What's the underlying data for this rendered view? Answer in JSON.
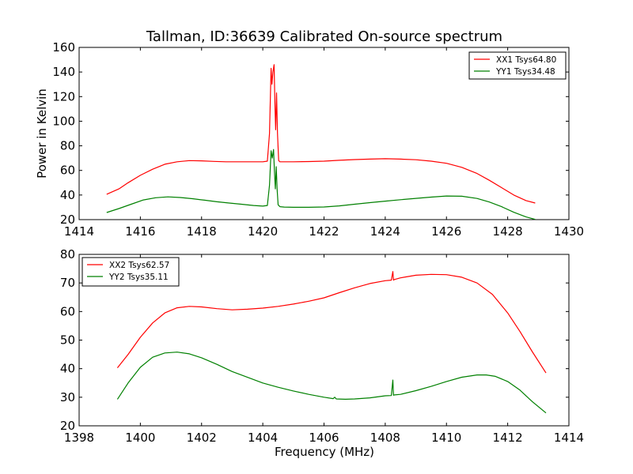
{
  "chart_data": [
    {
      "type": "line",
      "title": "Tallman, ID:36639 Calibrated On-source spectrum",
      "xlabel": "",
      "ylabel": "Power in Kelvin",
      "xlim": [
        1414,
        1430
      ],
      "ylim": [
        20,
        160
      ],
      "xticks": [
        "1414",
        "1416",
        "1418",
        "1420",
        "1422",
        "1424",
        "1426",
        "1428",
        "1430"
      ],
      "yticks": [
        "20",
        "40",
        "60",
        "80",
        "100",
        "120",
        "140",
        "160"
      ],
      "legend_position": "top-right",
      "series": [
        {
          "name": "XX1 Tsys64.80",
          "color": "#ff0000",
          "x": [
            1414.9,
            1415.3,
            1415.6,
            1416.0,
            1416.4,
            1416.8,
            1417.2,
            1417.6,
            1418.0,
            1418.4,
            1418.8,
            1419.2,
            1419.6,
            1420.0,
            1420.15,
            1420.22,
            1420.27,
            1420.3,
            1420.33,
            1420.37,
            1420.4,
            1420.42,
            1420.45,
            1420.48,
            1420.52,
            1420.56,
            1420.65,
            1421.0,
            1421.5,
            1422.0,
            1422.5,
            1423.0,
            1423.5,
            1424.0,
            1424.5,
            1425.0,
            1425.5,
            1426.0,
            1426.5,
            1427.0,
            1427.4,
            1427.8,
            1428.2,
            1428.6,
            1428.9
          ],
          "y": [
            40.6,
            45,
            50,
            56,
            61,
            65,
            67,
            68,
            67.8,
            67.3,
            67,
            67,
            67,
            67,
            67.5,
            90,
            143,
            130,
            140,
            146,
            110,
            93,
            123,
            90,
            68,
            67,
            67,
            67,
            67.2,
            67.5,
            68.2,
            68.8,
            69.2,
            69.5,
            69.2,
            68.7,
            67.5,
            65.8,
            62.5,
            57.5,
            52,
            46,
            40,
            35.5,
            33.5
          ]
        },
        {
          "name": "YY1 Tsys34.48",
          "color": "#008000",
          "x": [
            1414.9,
            1415.3,
            1415.7,
            1416.1,
            1416.5,
            1416.9,
            1417.3,
            1417.7,
            1418.1,
            1418.5,
            1418.9,
            1419.3,
            1419.7,
            1420.0,
            1420.15,
            1420.22,
            1420.27,
            1420.31,
            1420.35,
            1420.38,
            1420.41,
            1420.44,
            1420.47,
            1420.5,
            1420.56,
            1420.7,
            1421.0,
            1421.5,
            1422.0,
            1422.5,
            1423.0,
            1423.5,
            1424.0,
            1424.5,
            1425.0,
            1425.5,
            1426.0,
            1426.5,
            1427.0,
            1427.4,
            1427.8,
            1428.2,
            1428.6,
            1428.9
          ],
          "y": [
            25.8,
            29,
            32.5,
            36,
            37.8,
            38.5,
            38,
            37,
            35.8,
            34.5,
            33.5,
            32.5,
            31.5,
            31,
            31.5,
            48,
            76,
            70,
            77,
            60,
            45,
            63,
            44,
            32,
            30.5,
            30.2,
            30,
            30,
            30.3,
            31.2,
            32.5,
            33.8,
            35,
            36.2,
            37.3,
            38.3,
            39.2,
            39,
            37.2,
            34.3,
            30.5,
            26,
            22.2,
            20.2
          ]
        }
      ]
    },
    {
      "type": "line",
      "title": "",
      "xlabel": "Frequency (MHz)",
      "ylabel": "",
      "xlim": [
        1398,
        1414
      ],
      "ylim": [
        20,
        80
      ],
      "xticks": [
        "1398",
        "1400",
        "1402",
        "1404",
        "1406",
        "1408",
        "1410",
        "1412",
        "1414"
      ],
      "yticks": [
        "20",
        "30",
        "40",
        "50",
        "60",
        "70",
        "80"
      ],
      "legend_position": "top-left",
      "series": [
        {
          "name": "XX2 Tsys62.57",
          "color": "#ff0000",
          "x": [
            1399.25,
            1399.6,
            1400.0,
            1400.4,
            1400.8,
            1401.2,
            1401.6,
            1402.0,
            1402.5,
            1403.0,
            1403.5,
            1404.0,
            1404.5,
            1405.0,
            1405.5,
            1406.0,
            1406.5,
            1407.0,
            1407.5,
            1408.0,
            1408.2,
            1408.25,
            1408.27,
            1408.3,
            1408.5,
            1409.0,
            1409.5,
            1410.0,
            1410.5,
            1411.0,
            1411.5,
            1412.0,
            1412.4,
            1412.8,
            1413.25
          ],
          "y": [
            40.3,
            45,
            51,
            56,
            59.5,
            61.3,
            61.8,
            61.6,
            61,
            60.6,
            60.8,
            61.2,
            61.8,
            62.6,
            63.6,
            64.8,
            66.6,
            68.3,
            69.8,
            70.8,
            71,
            74,
            71,
            71.2,
            71.8,
            72.7,
            73,
            72.9,
            72,
            70,
            66,
            59.5,
            53,
            46,
            38.5
          ]
        },
        {
          "name": "YY2 Tsys35.11",
          "color": "#008000",
          "x": [
            1399.25,
            1399.6,
            1400.0,
            1400.4,
            1400.8,
            1401.2,
            1401.6,
            1402.0,
            1402.5,
            1403.0,
            1403.5,
            1404.0,
            1404.5,
            1405.0,
            1405.5,
            1406.0,
            1406.3,
            1406.35,
            1406.4,
            1406.7,
            1407.0,
            1407.5,
            1408.0,
            1408.2,
            1408.25,
            1408.27,
            1408.3,
            1408.5,
            1409.0,
            1409.5,
            1410.0,
            1410.5,
            1411.0,
            1411.3,
            1411.6,
            1412.0,
            1412.4,
            1412.8,
            1413.25
          ],
          "y": [
            29.3,
            35,
            40.5,
            44,
            45.5,
            45.8,
            45.2,
            43.8,
            41.5,
            39,
            37,
            35,
            33.5,
            32.2,
            31,
            30,
            29.5,
            30,
            29.4,
            29.3,
            29.4,
            29.8,
            30.5,
            30.6,
            36,
            30.7,
            30.8,
            31,
            32.3,
            33.8,
            35.5,
            37,
            37.8,
            37.8,
            37.3,
            35.5,
            32.5,
            28.5,
            24.5
          ]
        }
      ]
    }
  ]
}
